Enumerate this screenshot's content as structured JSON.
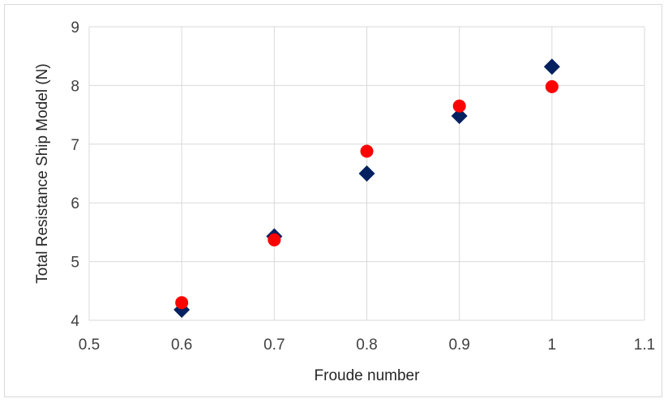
{
  "chart_data": {
    "type": "scatter",
    "title": "",
    "xlabel": "Froude number",
    "ylabel": "Total Resistance Ship Model (N)",
    "xlim": [
      0.5,
      1.1
    ],
    "ylim": [
      4,
      9
    ],
    "x_ticks": [
      "0.5",
      "0.6",
      "0.7",
      "0.8",
      "0.9",
      "1",
      "1.1"
    ],
    "y_ticks": [
      "4",
      "5",
      "6",
      "7",
      "8",
      "9"
    ],
    "x_tick_values": [
      0.5,
      0.6,
      0.7,
      0.8,
      0.9,
      1.0,
      1.1
    ],
    "y_tick_values": [
      4,
      5,
      6,
      7,
      8,
      9
    ],
    "grid": true,
    "legend": "none",
    "series": [
      {
        "marker": "diamond",
        "color": "#002060",
        "x": [
          0.6,
          0.7,
          0.8,
          0.9,
          1.0
        ],
        "y": [
          4.18,
          5.43,
          6.5,
          7.48,
          8.32
        ]
      },
      {
        "marker": "circle",
        "color": "#ff0000",
        "x": [
          0.6,
          0.7,
          0.8,
          0.9,
          1.0
        ],
        "y": [
          4.3,
          5.37,
          6.88,
          7.65,
          7.98
        ]
      }
    ]
  }
}
